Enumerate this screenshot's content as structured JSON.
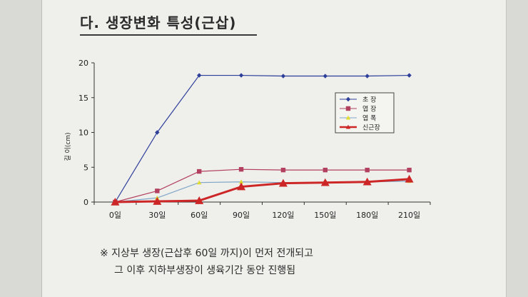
{
  "section_title": "다. 생장변화 특성(근삽)",
  "notes": {
    "line1": "※ 지상부 생장(근삽후 60일 까지)이 먼저 전개되고",
    "line2": "그 이후 지하부생장이 생육기간 동안 진행됨"
  },
  "chart_data": {
    "type": "line",
    "title": "",
    "xlabel": "",
    "ylabel": "길 이(cm)",
    "categories": [
      "0일",
      "30일",
      "60일",
      "90일",
      "120일",
      "150일",
      "180일",
      "210일"
    ],
    "ylim": [
      0,
      20
    ],
    "yticks": [
      0,
      5,
      10,
      15,
      20
    ],
    "grid": false,
    "legend_position": "right",
    "series": [
      {
        "name": "초 장",
        "color": "#2e3f9a",
        "marker": "diamond",
        "values": [
          0,
          10,
          18.2,
          18.2,
          18.1,
          18.1,
          18.1,
          18.2
        ]
      },
      {
        "name": "엽 장",
        "color": "#b2405e",
        "marker": "square",
        "values": [
          0,
          1.6,
          4.4,
          4.7,
          4.6,
          4.6,
          4.6,
          4.6
        ]
      },
      {
        "name": "엽 폭",
        "color": "#7fa6c9",
        "marker": "triangle-yellow",
        "values": [
          0,
          0.6,
          2.8,
          2.9,
          2.8,
          2.8,
          2.9,
          3.0
        ]
      },
      {
        "name": "신근장",
        "color": "#cc2626",
        "marker": "triangle",
        "values": [
          0,
          0.1,
          0.2,
          2.2,
          2.7,
          2.8,
          2.9,
          3.3
        ]
      }
    ]
  }
}
